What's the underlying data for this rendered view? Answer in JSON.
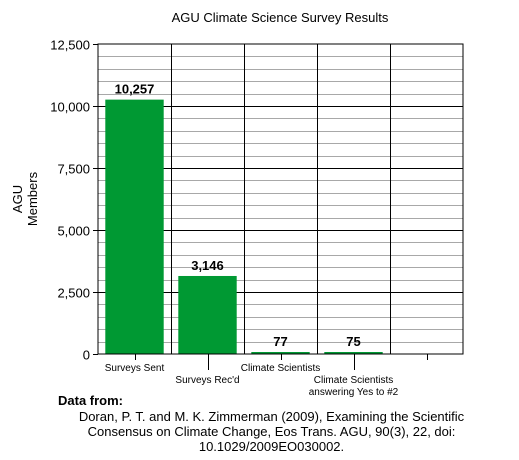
{
  "chart_data": {
    "type": "bar",
    "title": "AGU Climate Science Survey Results",
    "ylabel_lines": [
      "AGU",
      "Members"
    ],
    "xlabel": "",
    "categories": [
      [
        "Surveys Sent"
      ],
      [
        "Surveys Rec'd"
      ],
      [
        "Climate Scientists"
      ],
      [
        "Climate Scientists",
        "answering Yes to #2"
      ],
      [
        ""
      ]
    ],
    "values": [
      10257,
      3146,
      77,
      75,
      null
    ],
    "data_labels": [
      "10,257",
      "3,146",
      "77",
      "75",
      ""
    ],
    "ylim": [
      0,
      12500
    ],
    "yticks": [
      0,
      2500,
      5000,
      7500,
      10000,
      12500
    ],
    "ytick_labels": [
      "0",
      "2,500",
      "5,000",
      "7,500",
      "10,000",
      "12,500"
    ],
    "minor_tick_step": 500,
    "grid": true,
    "bar_color": "#009933",
    "legend": "none"
  },
  "source": {
    "heading": "Data from:",
    "lines": [
      "Doran, P. T. and M. K. Zimmerman (2009), Examining the Scientific",
      "Consensus on Climate Change, Eos Trans. AGU, 90(3), 22, doi:",
      "10.1029/2009EO030002."
    ]
  }
}
